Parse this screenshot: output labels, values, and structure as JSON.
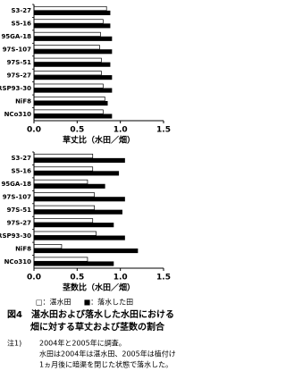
{
  "chart_data": [
    {
      "type": "barh",
      "categories": [
        "S3-27",
        "S5-16",
        "95GA-18",
        "97S-107",
        "97S-51",
        "97S-27",
        "KRSP93-30",
        "NiF8",
        "NCo310"
      ],
      "series": [
        {
          "color": "#ffffff",
          "values": [
            0.84,
            0.8,
            0.77,
            0.76,
            0.78,
            0.78,
            0.8,
            0.82,
            0.8
          ]
        },
        {
          "color": "#000000",
          "values": [
            0.88,
            0.88,
            0.9,
            0.9,
            0.88,
            0.9,
            0.9,
            0.85,
            0.9
          ]
        }
      ],
      "xlim": [
        0,
        1.5
      ],
      "xticks": [
        {
          "value": 0,
          "label": "0.0"
        },
        0.5,
        {
          "value": 1,
          "label": "1.0"
        },
        1.5
      ],
      "x_label": "草丈比（水田／畑）"
    },
    {
      "type": "barh",
      "categories": [
        "S3-27",
        "S5-16",
        "95GA-18",
        "97S-107",
        "97S-51",
        "97S-27",
        "KRSP93-30",
        "NiF8",
        "NCo310"
      ],
      "series": [
        {
          "name": "□：湛水田",
          "color": "#ffffff",
          "values": [
            0.68,
            0.68,
            0.62,
            0.7,
            0.7,
            0.68,
            0.72,
            0.32,
            0.62
          ]
        },
        {
          "name": "■：落水した田",
          "color": "#000000",
          "values": [
            1.05,
            0.98,
            0.82,
            1.05,
            1.02,
            0.92,
            1.05,
            1.2,
            0.92
          ]
        }
      ],
      "xlim": [
        0,
        1.5
      ],
      "xticks": [
        {
          "value": 0,
          "label": "0.0"
        },
        0.5,
        {
          "value": 1,
          "label": "1.0"
        },
        1.5
      ],
      "x_label": "茎数比（水田／畑）"
    }
  ],
  "caption": [
    "図4　湛水田および落水した水田における",
    "畑に対する草丈および茎数の割合"
  ],
  "notes": {
    "label": "注1)",
    "lines": [
      "2004年と2005年に調査。",
      "水田は2004年は湛水田、2005年は植付け",
      "1ヵ月後に暗渠を閉じた状態で落水した。"
    ]
  }
}
